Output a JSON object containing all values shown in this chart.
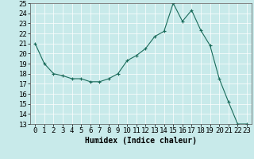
{
  "x": [
    0,
    1,
    2,
    3,
    4,
    5,
    6,
    7,
    8,
    9,
    10,
    11,
    12,
    13,
    14,
    15,
    16,
    17,
    18,
    19,
    20,
    21,
    22,
    23
  ],
  "y": [
    21.0,
    19.0,
    18.0,
    17.8,
    17.5,
    17.5,
    17.2,
    17.2,
    17.5,
    18.0,
    19.3,
    19.8,
    20.5,
    21.7,
    22.2,
    25.0,
    23.2,
    24.3,
    22.3,
    20.8,
    17.5,
    15.2,
    13.0,
    13.0
  ],
  "line_color": "#1a6b5a",
  "marker": "+",
  "bg_color": "#c8eaea",
  "grid_color": "#aad4d4",
  "xlabel": "Humidex (Indice chaleur)",
  "ylim": [
    13,
    25
  ],
  "xlim": [
    -0.5,
    23.5
  ],
  "yticks": [
    13,
    14,
    15,
    16,
    17,
    18,
    19,
    20,
    21,
    22,
    23,
    24,
    25
  ],
  "xticks": [
    0,
    1,
    2,
    3,
    4,
    5,
    6,
    7,
    8,
    9,
    10,
    11,
    12,
    13,
    14,
    15,
    16,
    17,
    18,
    19,
    20,
    21,
    22,
    23
  ],
  "xlabel_fontsize": 7,
  "tick_fontsize": 6.5
}
